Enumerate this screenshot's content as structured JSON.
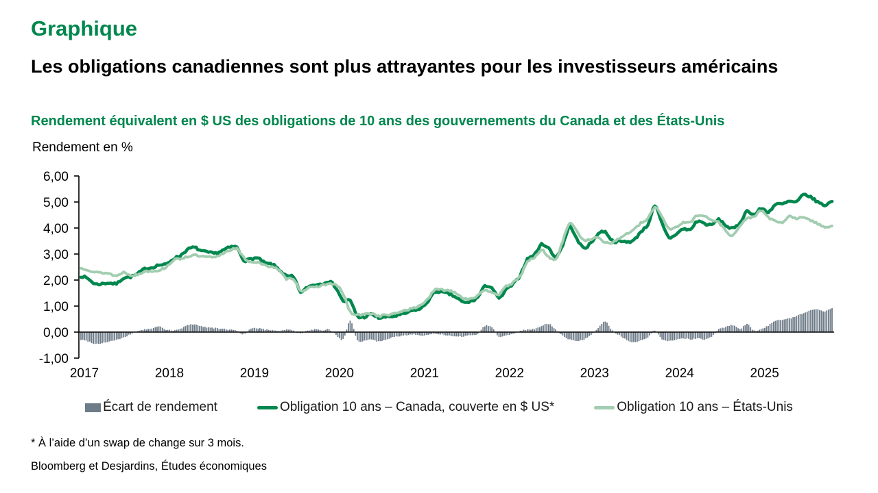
{
  "header": {
    "kicker": "Graphique",
    "title": "Les obligations canadiennes sont plus attrayantes pour les investisseurs américains",
    "subtitle": "Rendement équivalent en $ US des obligations de 10 ans des gouvernements du Canada et des États-Unis",
    "unit_label": "Rendement en %"
  },
  "footnotes": {
    "asterisk": "* À l’aide d’un swap de change sur 3 mois.",
    "source": "Bloomberg et Desjardins, Études économiques"
  },
  "colors": {
    "brand_green": "#00874e",
    "light_green": "#a2cdb0",
    "spread_gray": "#6e7b88",
    "axis_black": "#000000"
  },
  "legend": {
    "items": [
      {
        "label": "Écart de rendement",
        "marker": "bar",
        "color": "#6e7b88"
      },
      {
        "label": "Obligation 10 ans – Canada, couverte en $ US*",
        "marker": "line",
        "color": "#00874e"
      },
      {
        "label": "Obligation 10 ans – États-Unis",
        "marker": "line",
        "color": "#a2cdb0"
      }
    ]
  },
  "chart_data": {
    "type": "line",
    "subtype": "two lines + bar spread",
    "title": "Rendement équivalent en $ US des obligations de 10 ans des gouvernements du Canada et des États-Unis",
    "ylabel": "Rendement en %",
    "ylim": [
      -1,
      6
    ],
    "y_ticks": [
      "6,00",
      "5,00",
      "4,00",
      "3,00",
      "2,00",
      "1,00",
      "0,00",
      "-1,00"
    ],
    "x_tick_years": [
      "2017",
      "2018",
      "2019",
      "2020",
      "2021",
      "2022",
      "2023",
      "2024",
      "2025"
    ],
    "x_start": "2017-01",
    "x_end": "2025-11",
    "frequency_of_stored_values": "monthly",
    "series": [
      {
        "name": "Écart de rendement",
        "type": "bar",
        "color": "#6e7b88",
        "values": [
          -0.3,
          -0.35,
          -0.45,
          -0.42,
          -0.36,
          -0.3,
          -0.22,
          -0.08,
          0.04,
          0.1,
          0.13,
          0.22,
          0.1,
          0.06,
          0.12,
          0.26,
          0.3,
          0.22,
          0.18,
          0.15,
          0.12,
          0.1,
          0.05,
          -0.08,
          0.12,
          0.15,
          0.1,
          0.08,
          0.05,
          0.1,
          0.05,
          -0.05,
          0.05,
          0.1,
          0.06,
          0.1,
          -0.1,
          -0.28,
          0.42,
          -0.3,
          -0.33,
          -0.28,
          -0.36,
          -0.28,
          -0.2,
          -0.16,
          -0.12,
          -0.08,
          -0.14,
          -0.1,
          -0.08,
          -0.1,
          -0.14,
          -0.18,
          -0.16,
          -0.12,
          -0.06,
          0.24,
          0.18,
          -0.18,
          -0.12,
          -0.06,
          0.05,
          0.1,
          0.12,
          0.22,
          0.32,
          0.1,
          -0.15,
          -0.28,
          -0.34,
          -0.28,
          -0.12,
          0.16,
          0.4,
          0.06,
          -0.12,
          -0.3,
          -0.4,
          -0.32,
          -0.22,
          0.06,
          -0.28,
          -0.34,
          -0.28,
          -0.24,
          -0.28,
          -0.24,
          -0.28,
          -0.18,
          0.1,
          0.2,
          0.26,
          0.12,
          0.3,
          0.06,
          0.12,
          0.25,
          0.42,
          0.48,
          0.52,
          0.62,
          0.74,
          0.85,
          0.88,
          0.8,
          0.92
        ]
      },
      {
        "name": "Obligation 10 ans – Canada, couverte en $ US*",
        "type": "line",
        "color": "#00874e",
        "values": [
          2.15,
          2.05,
          1.85,
          1.86,
          1.89,
          1.86,
          2.08,
          2.12,
          2.24,
          2.43,
          2.48,
          2.58,
          2.6,
          2.81,
          2.94,
          3.16,
          3.25,
          3.12,
          3.06,
          3.03,
          3.14,
          3.25,
          3.25,
          2.77,
          2.82,
          2.83,
          2.65,
          2.6,
          2.4,
          2.15,
          2.1,
          1.55,
          1.73,
          1.82,
          1.86,
          1.95,
          1.7,
          1.2,
          1.2,
          0.62,
          0.58,
          0.68,
          0.55,
          0.58,
          0.6,
          0.66,
          0.74,
          0.84,
          0.91,
          1.2,
          1.54,
          1.52,
          1.46,
          1.32,
          1.14,
          1.18,
          1.34,
          1.75,
          1.7,
          1.3,
          1.63,
          1.84,
          2.2,
          2.8,
          2.97,
          3.37,
          3.22,
          2.9,
          3.35,
          4.05,
          3.55,
          3.25,
          3.43,
          3.78,
          3.85,
          3.51,
          3.48,
          3.48,
          3.52,
          3.86,
          4.13,
          4.82,
          4.17,
          3.64,
          3.77,
          3.96,
          3.94,
          4.26,
          4.17,
          4.12,
          4.32,
          4.1,
          3.98,
          4.2,
          4.65,
          4.51,
          4.75,
          4.62,
          4.9,
          4.92,
          5.02,
          5.0,
          5.28,
          5.18,
          5.0,
          4.88,
          5.02
        ]
      },
      {
        "name": "Obligation 10 ans – États-Unis",
        "type": "line",
        "color": "#a2cdb0",
        "values": [
          2.45,
          2.4,
          2.3,
          2.28,
          2.25,
          2.16,
          2.3,
          2.2,
          2.2,
          2.33,
          2.35,
          2.38,
          2.5,
          2.75,
          2.82,
          2.9,
          2.95,
          2.9,
          2.88,
          2.88,
          3.02,
          3.15,
          3.2,
          2.85,
          2.7,
          2.68,
          2.55,
          2.52,
          2.35,
          2.05,
          2.05,
          1.6,
          1.68,
          1.72,
          1.8,
          1.85,
          1.8,
          1.48,
          0.78,
          0.66,
          0.68,
          0.72,
          0.62,
          0.66,
          0.68,
          0.78,
          0.86,
          0.92,
          1.05,
          1.3,
          1.62,
          1.62,
          1.6,
          1.5,
          1.3,
          1.3,
          1.4,
          1.58,
          1.55,
          1.45,
          1.75,
          1.9,
          2.15,
          2.7,
          2.85,
          3.15,
          2.9,
          2.8,
          3.5,
          4.2,
          3.85,
          3.55,
          3.55,
          3.65,
          3.45,
          3.45,
          3.6,
          3.78,
          3.92,
          4.18,
          4.35,
          4.8,
          4.45,
          3.98,
          4.05,
          4.2,
          4.22,
          4.5,
          4.45,
          4.3,
          4.22,
          3.9,
          3.72,
          4.08,
          4.35,
          4.45,
          4.65,
          4.42,
          4.25,
          4.22,
          4.45,
          4.35,
          4.42,
          4.3,
          4.15,
          4.05,
          4.08
        ]
      }
    ]
  }
}
